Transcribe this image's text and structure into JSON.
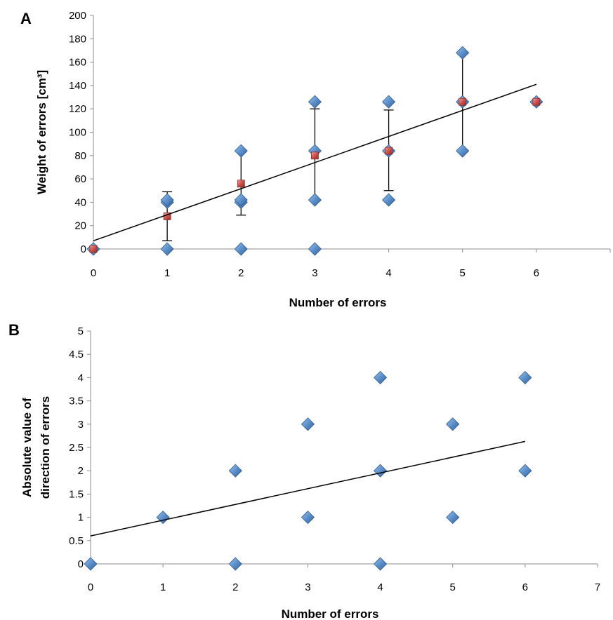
{
  "chart_data": [
    {
      "panel_label": "A",
      "type": "scatter",
      "xlabel": "Number of errors",
      "ylabel": "Weight of errors [cm³]",
      "xlim": [
        0,
        7
      ],
      "ylim": [
        0,
        200
      ],
      "xticks": [
        "0",
        "1",
        "2",
        "3",
        "4",
        "5",
        "6",
        "7"
      ],
      "yticks": [
        "0",
        "20",
        "40",
        "60",
        "80",
        "100",
        "120",
        "140",
        "160",
        "180",
        "200"
      ],
      "grid": false,
      "legend": "none",
      "series": [
        {
          "marker": "diamond",
          "color": "#4f81bd",
          "points": [
            [
              0,
              0
            ],
            [
              1,
              0
            ],
            [
              1,
              40
            ],
            [
              1,
              42
            ],
            [
              2,
              0
            ],
            [
              2,
              40
            ],
            [
              2,
              42
            ],
            [
              2,
              84
            ],
            [
              3,
              0
            ],
            [
              3,
              42
            ],
            [
              3,
              84
            ],
            [
              3,
              126
            ],
            [
              4,
              42
            ],
            [
              4,
              84
            ],
            [
              4,
              126
            ],
            [
              5,
              84
            ],
            [
              5,
              126
            ],
            [
              5,
              168
            ],
            [
              6,
              126
            ]
          ]
        },
        {
          "marker": "square",
          "color": "#c0504d",
          "points": [
            [
              0,
              0
            ],
            [
              1,
              28
            ],
            [
              2,
              56
            ],
            [
              3,
              80
            ],
            [
              4,
              84
            ],
            [
              5,
              126
            ],
            [
              6,
              126
            ]
          ],
          "error_bars": [
            null,
            [
              7,
              49
            ],
            [
              29,
              84
            ],
            [
              41,
              120
            ],
            [
              50,
              119
            ],
            [
              84,
              168
            ],
            null
          ]
        }
      ],
      "trendline": {
        "type": "linear",
        "x": [
          0,
          6
        ],
        "y": [
          7,
          141
        ]
      }
    },
    {
      "panel_label": "B",
      "type": "scatter",
      "xlabel": "Number of errors",
      "ylabel": "Absolute value of direction of errors",
      "ylabel_lines": [
        "Absolute value of",
        "direction of errors"
      ],
      "xlim": [
        0,
        7
      ],
      "ylim": [
        0,
        5
      ],
      "xticks": [
        "0",
        "1",
        "2",
        "3",
        "4",
        "5",
        "6",
        "7"
      ],
      "yticks": [
        "0",
        "0.5",
        "1",
        "1.5",
        "2",
        "2.5",
        "3",
        "3.5",
        "4",
        "4.5",
        "5"
      ],
      "grid": false,
      "legend": "none",
      "series": [
        {
          "marker": "diamond",
          "color": "#4f81bd",
          "points": [
            [
              0,
              0
            ],
            [
              1,
              1
            ],
            [
              2,
              0
            ],
            [
              2,
              2
            ],
            [
              3,
              1
            ],
            [
              3,
              3
            ],
            [
              4,
              0
            ],
            [
              4,
              2
            ],
            [
              4,
              4
            ],
            [
              5,
              1
            ],
            [
              5,
              3
            ],
            [
              6,
              2
            ],
            [
              6,
              4
            ]
          ]
        }
      ],
      "trendline": {
        "type": "linear",
        "x": [
          0,
          6
        ],
        "y": [
          0.6,
          2.63
        ]
      }
    }
  ]
}
